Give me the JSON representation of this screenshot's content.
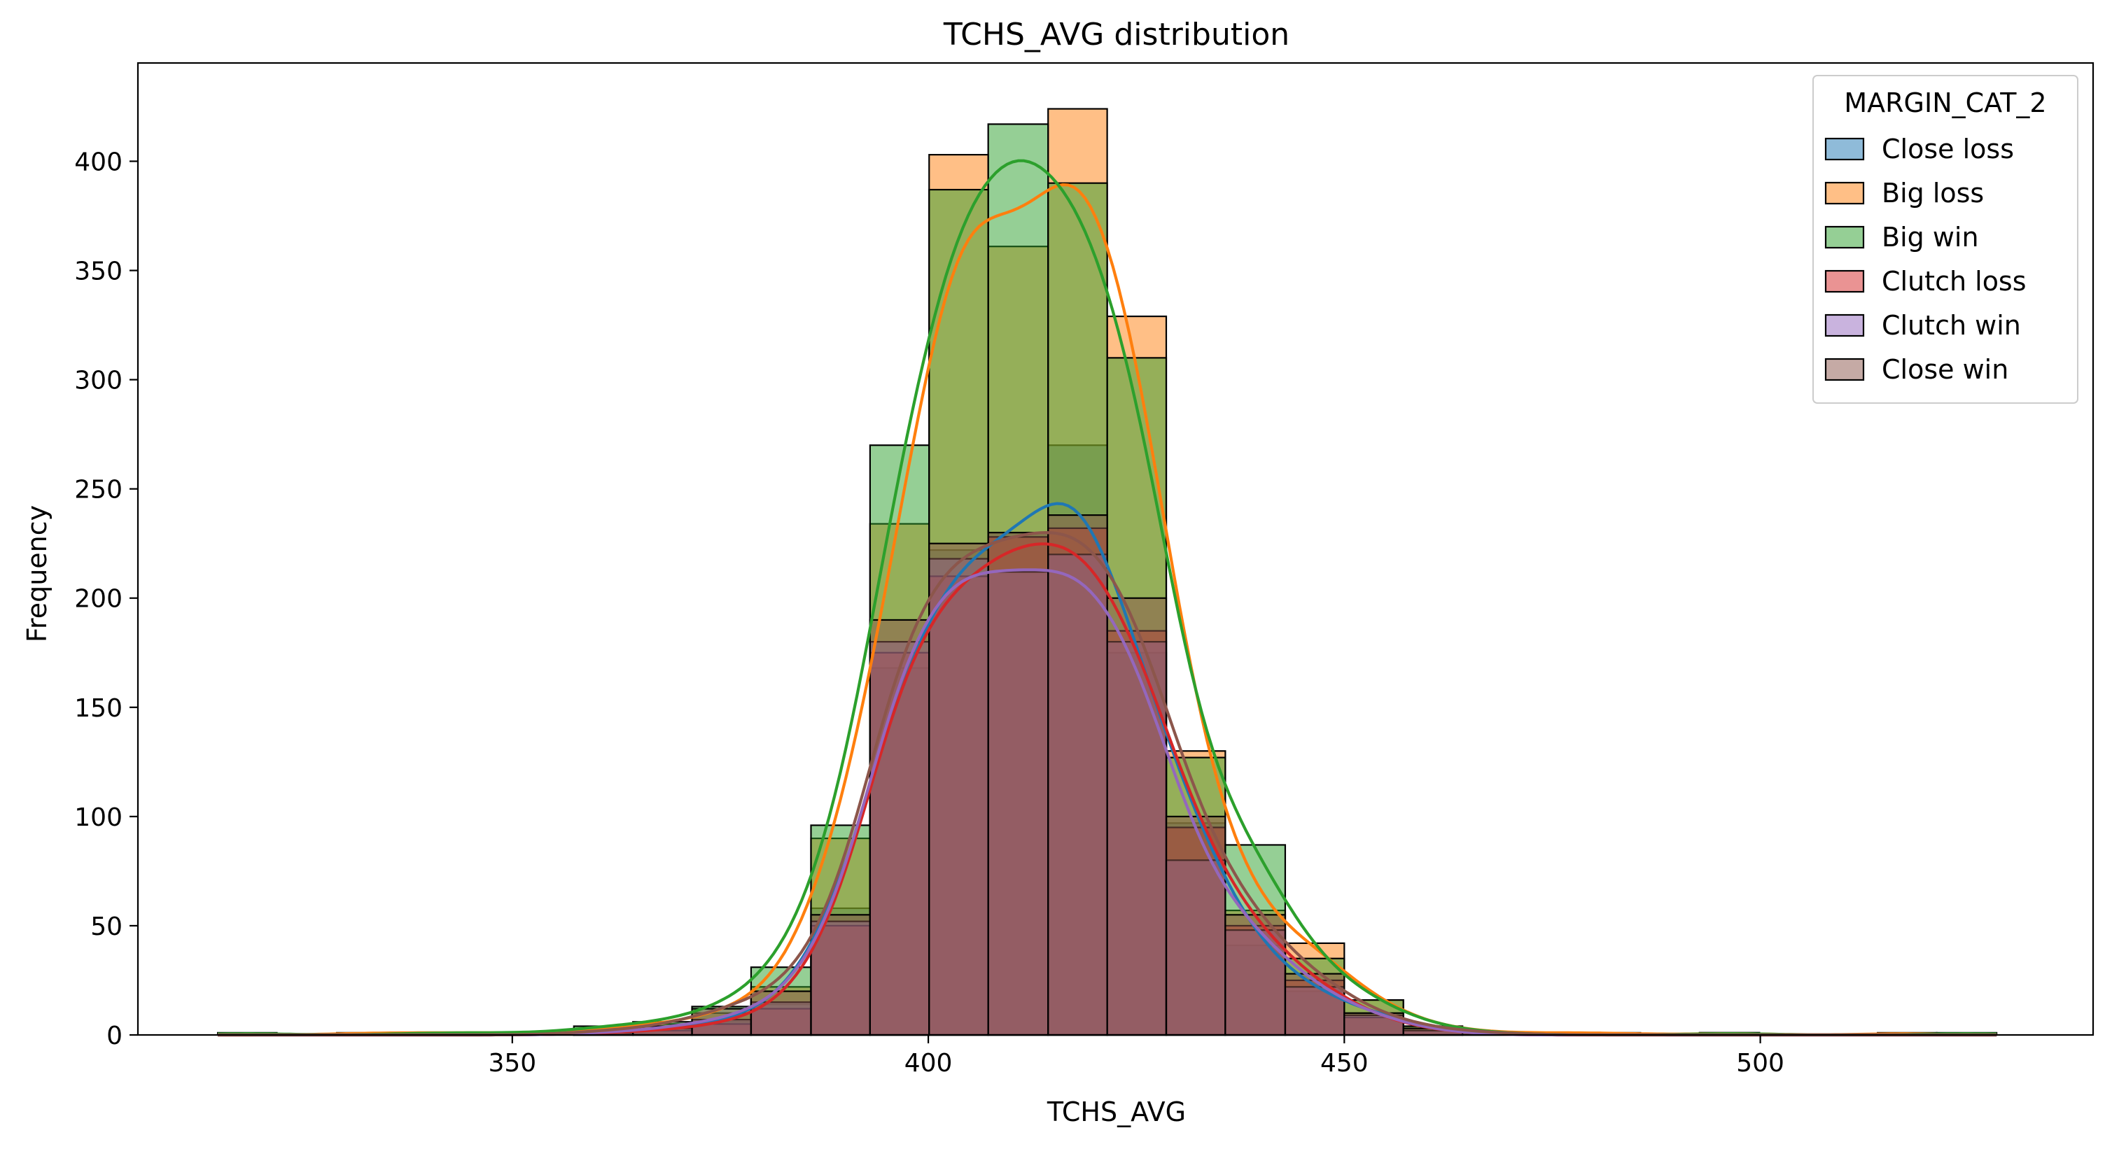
{
  "chart_data": {
    "type": "bar",
    "title": "TCHS_AVG distribution",
    "xlabel": "TCHS_AVG",
    "ylabel": "Frequency",
    "xlim": [
      305,
      540
    ],
    "ylim": [
      0,
      445
    ],
    "x_ticks": [
      "350",
      "400",
      "450",
      "500"
    ],
    "y_ticks": [
      "0",
      "50",
      "100",
      "150",
      "200",
      "250",
      "300",
      "350",
      "400"
    ],
    "bin_edges": [
      314.6,
      321.7,
      328.9,
      336.0,
      343.1,
      350.2,
      357.4,
      364.5,
      371.6,
      378.7,
      385.9,
      393.0,
      400.1,
      407.2,
      414.4,
      421.5,
      428.6,
      435.7,
      442.9,
      450.0,
      457.1,
      464.2,
      471.4,
      478.5,
      485.6,
      492.7,
      499.9,
      507.0,
      514.1,
      521.2,
      528.4
    ],
    "legend": {
      "title": "MARGIN_CAT_2",
      "position": "top-right"
    },
    "series": [
      {
        "name": "Close loss",
        "color": "#1f77b4",
        "values": [
          0,
          0,
          0,
          0,
          0,
          0,
          1,
          2,
          6,
          14,
          58,
          168,
          222,
          230,
          270,
          175,
          97,
          41,
          20,
          10,
          3,
          1,
          1,
          0,
          0,
          0,
          0,
          0,
          0,
          0
        ]
      },
      {
        "name": "Big loss",
        "color": "#ff7f0e",
        "values": [
          0,
          0,
          1,
          1,
          1,
          1,
          3,
          5,
          10,
          22,
          90,
          234,
          403,
          361,
          424,
          329,
          130,
          57,
          42,
          16,
          4,
          1,
          1,
          1,
          0,
          1,
          0,
          0,
          1,
          0
        ]
      },
      {
        "name": "Big win",
        "color": "#2ca02c",
        "values": [
          1,
          0,
          0,
          1,
          1,
          1,
          4,
          6,
          13,
          31,
          96,
          270,
          387,
          417,
          390,
          310,
          127,
          87,
          35,
          16,
          4,
          1,
          0,
          0,
          0,
          1,
          0,
          0,
          0,
          1
        ]
      },
      {
        "name": "Clutch loss",
        "color": "#d62728",
        "values": [
          0,
          0,
          0,
          0,
          0,
          0,
          1,
          2,
          5,
          12,
          50,
          175,
          210,
          228,
          232,
          185,
          95,
          50,
          25,
          8,
          2,
          0,
          0,
          0,
          0,
          0,
          0,
          0,
          0,
          0
        ]
      },
      {
        "name": "Clutch win",
        "color": "#9467bd",
        "values": [
          0,
          0,
          0,
          0,
          0,
          0,
          1,
          3,
          7,
          15,
          52,
          180,
          218,
          212,
          220,
          180,
          80,
          48,
          22,
          9,
          2,
          0,
          0,
          0,
          0,
          0,
          0,
          0,
          0,
          0
        ]
      },
      {
        "name": "Close win",
        "color": "#8c564b",
        "values": [
          0,
          0,
          0,
          0,
          0,
          0,
          2,
          4,
          12,
          20,
          55,
          190,
          225,
          230,
          238,
          200,
          100,
          55,
          28,
          10,
          3,
          1,
          0,
          0,
          0,
          0,
          0,
          0,
          0,
          0
        ]
      }
    ]
  }
}
